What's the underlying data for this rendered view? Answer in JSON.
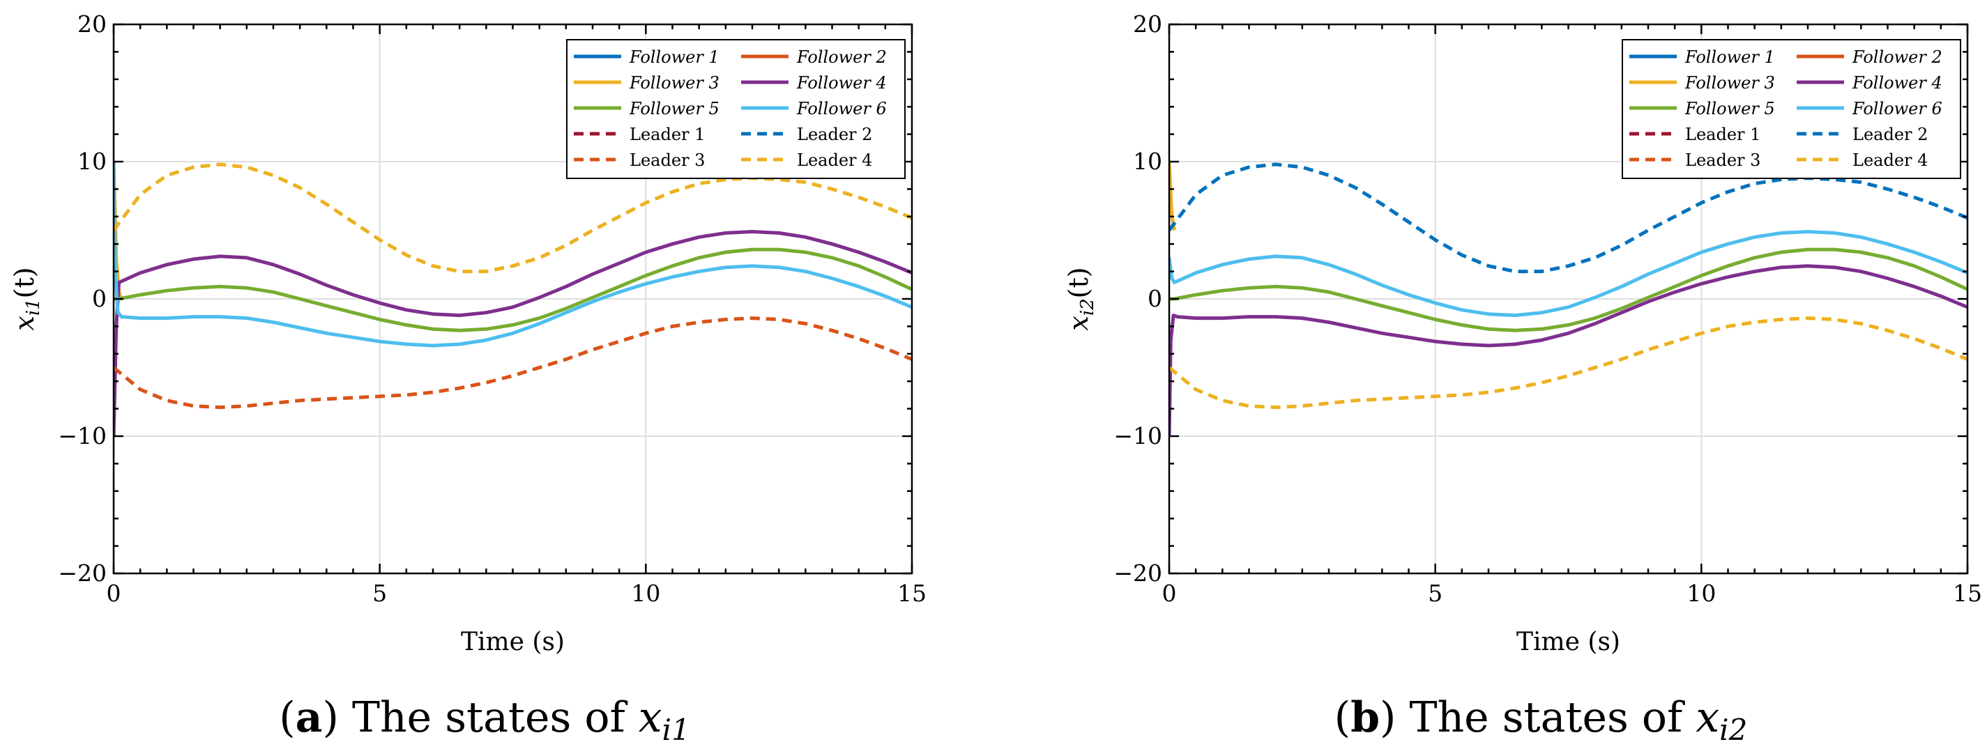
{
  "chart_data": [
    {
      "type": "line",
      "id": "a",
      "caption_letter": "a",
      "caption_text": "The states of",
      "caption_var": "x",
      "caption_sub": "i1",
      "xlabel": "Time (s)",
      "ylabel_main": "x",
      "ylabel_sub": "i1",
      "ylabel_arg": "(t)",
      "xlim": [
        0,
        15
      ],
      "ylim": [
        -20,
        20
      ],
      "xticks": [
        0,
        5,
        10,
        15
      ],
      "yticks": [
        -20,
        -10,
        0,
        10,
        20
      ],
      "ytick_labels": [
        "−20",
        "−10",
        "0",
        "10",
        "20"
      ],
      "xtick_labels": [
        "0",
        "5",
        "10",
        "15"
      ],
      "legend_position": "top-right",
      "series": [
        {
          "name": "Follower 1",
          "style": "solid",
          "color": "#0072bd",
          "x": [],
          "y": []
        },
        {
          "name": "Follower 2",
          "style": "solid",
          "color": "#d95319",
          "x": [],
          "y": []
        },
        {
          "name": "Follower 3",
          "style": "solid",
          "color": "#edb120",
          "x": [
            0,
            0.05,
            0.1,
            0.15
          ],
          "y": [
            10,
            3,
            0.5,
            0
          ]
        },
        {
          "name": "Follower 4",
          "style": "solid",
          "color": "#7e2f8e",
          "x": [
            0,
            0.05,
            0.1,
            0.5,
            1,
            1.5,
            2,
            2.5,
            3,
            3.5,
            4,
            4.5,
            5,
            5.5,
            6,
            6.5,
            7,
            7.5,
            8,
            8.5,
            9,
            9.5,
            10,
            10.5,
            11,
            11.5,
            12,
            12.5,
            13,
            13.5,
            14,
            14.5,
            15
          ],
          "y": [
            -10,
            -2,
            1.2,
            1.9,
            2.5,
            2.9,
            3.1,
            3.0,
            2.5,
            1.8,
            1.0,
            0.3,
            -0.3,
            -0.8,
            -1.1,
            -1.2,
            -1.0,
            -0.6,
            0.1,
            0.9,
            1.8,
            2.6,
            3.4,
            4.0,
            4.5,
            4.8,
            4.9,
            4.8,
            4.5,
            4.0,
            3.4,
            2.7,
            1.9
          ]
        },
        {
          "name": "Follower 5",
          "style": "solid",
          "color": "#77ac30",
          "x": [
            0,
            0.05,
            0.1,
            0.5,
            1,
            1.5,
            2,
            2.5,
            3,
            3.5,
            4,
            4.5,
            5,
            5.5,
            6,
            6.5,
            7,
            7.5,
            8,
            8.5,
            9,
            9.5,
            10,
            10.5,
            11,
            11.5,
            12,
            12.5,
            13,
            13.5,
            14,
            14.5,
            15
          ],
          "y": [
            0,
            0,
            0,
            0.3,
            0.6,
            0.8,
            0.9,
            0.8,
            0.5,
            0,
            -0.5,
            -1.0,
            -1.5,
            -1.9,
            -2.2,
            -2.3,
            -2.2,
            -1.9,
            -1.4,
            -0.7,
            0.1,
            0.9,
            1.7,
            2.4,
            3.0,
            3.4,
            3.6,
            3.6,
            3.4,
            3.0,
            2.4,
            1.6,
            0.7
          ]
        },
        {
          "name": "Follower 6",
          "style": "solid",
          "color": "#4dbeee",
          "x": [
            0,
            0.03,
            0.08,
            0.15,
            0.5,
            1,
            1.5,
            2,
            2.5,
            3,
            3.5,
            4,
            4.5,
            5,
            5.5,
            6,
            6.5,
            7,
            7.5,
            8,
            8.5,
            9,
            9.5,
            10,
            10.5,
            11,
            11.5,
            12,
            12.5,
            13,
            13.5,
            14,
            14.5,
            15
          ],
          "y": [
            10,
            2,
            -1,
            -1.3,
            -1.4,
            -1.4,
            -1.3,
            -1.3,
            -1.4,
            -1.7,
            -2.1,
            -2.5,
            -2.8,
            -3.1,
            -3.3,
            -3.4,
            -3.3,
            -3.0,
            -2.5,
            -1.8,
            -1.0,
            -0.2,
            0.5,
            1.1,
            1.6,
            2.0,
            2.3,
            2.4,
            2.3,
            2.0,
            1.5,
            0.9,
            0.2,
            -0.6
          ]
        },
        {
          "name": "Leader  1",
          "style": "dashed",
          "color": "#a2142f",
          "x": [],
          "y": []
        },
        {
          "name": "Leader  2",
          "style": "dashed",
          "color": "#0072bd",
          "x": [],
          "y": []
        },
        {
          "name": "Leader  3",
          "style": "dashed",
          "color": "#d95319",
          "x": [
            0,
            0.5,
            1,
            1.5,
            2,
            2.5,
            3,
            3.5,
            4,
            4.5,
            5,
            5.5,
            6,
            6.5,
            7,
            7.5,
            8,
            8.5,
            9,
            9.5,
            10,
            10.5,
            11,
            11.5,
            12,
            12.5,
            13,
            13.5,
            14,
            14.5,
            15
          ],
          "y": [
            -5,
            -6.6,
            -7.4,
            -7.8,
            -7.9,
            -7.8,
            -7.6,
            -7.4,
            -7.3,
            -7.2,
            -7.1,
            -7.0,
            -6.8,
            -6.5,
            -6.1,
            -5.6,
            -5.0,
            -4.4,
            -3.7,
            -3.1,
            -2.5,
            -2.0,
            -1.7,
            -1.5,
            -1.4,
            -1.5,
            -1.8,
            -2.3,
            -2.9,
            -3.6,
            -4.4
          ]
        },
        {
          "name": "Leader  4",
          "style": "dashed",
          "color": "#edb120",
          "x": [
            0,
            0.5,
            1,
            1.5,
            2,
            2.5,
            3,
            3.5,
            4,
            4.5,
            5,
            5.5,
            6,
            6.5,
            7,
            7.5,
            8,
            8.5,
            9,
            9.5,
            10,
            10.5,
            11,
            11.5,
            12,
            12.5,
            13,
            13.5,
            14,
            14.5,
            15
          ],
          "y": [
            5,
            7.6,
            9.0,
            9.6,
            9.8,
            9.6,
            9.0,
            8.1,
            6.9,
            5.6,
            4.3,
            3.2,
            2.4,
            2.0,
            2.0,
            2.4,
            3.0,
            3.9,
            5.0,
            6.0,
            7.0,
            7.8,
            8.4,
            8.7,
            8.8,
            8.7,
            8.5,
            8.0,
            7.4,
            6.7,
            5.9
          ]
        }
      ]
    },
    {
      "type": "line",
      "id": "b",
      "caption_letter": "b",
      "caption_text": "The states of",
      "caption_var": "x",
      "caption_sub": "i2",
      "xlabel": "Time (s)",
      "ylabel_main": "x",
      "ylabel_sub": "i2",
      "ylabel_arg": "(t)",
      "xlim": [
        0,
        15
      ],
      "ylim": [
        -20,
        20
      ],
      "xticks": [
        0,
        5,
        10,
        15
      ],
      "yticks": [
        -20,
        -10,
        0,
        10,
        20
      ],
      "ytick_labels": [
        "−20",
        "−10",
        "0",
        "10",
        "20"
      ],
      "xtick_labels": [
        "0",
        "5",
        "10",
        "15"
      ],
      "legend_position": "top-right",
      "series": [
        {
          "name": "Follower 1",
          "style": "solid",
          "color": "#0072bd",
          "x": [],
          "y": []
        },
        {
          "name": "Follower 2",
          "style": "solid",
          "color": "#d95319",
          "x": [],
          "y": []
        },
        {
          "name": "Follower 3",
          "style": "solid",
          "color": "#edb120",
          "x": [
            0,
            0.05,
            0.1
          ],
          "y": [
            10,
            6,
            5
          ]
        },
        {
          "name": "Follower 4",
          "style": "solid",
          "color": "#7e2f8e",
          "x": [
            0,
            0.03,
            0.08,
            0.15,
            0.5,
            1,
            1.5,
            2,
            2.5,
            3,
            3.5,
            4,
            4.5,
            5,
            5.5,
            6,
            6.5,
            7,
            7.5,
            8,
            8.5,
            9,
            9.5,
            10,
            10.5,
            11,
            11.5,
            12,
            12.5,
            13,
            13.5,
            14,
            14.5,
            15
          ],
          "y": [
            -10,
            -3,
            -1.2,
            -1.3,
            -1.4,
            -1.4,
            -1.3,
            -1.3,
            -1.4,
            -1.7,
            -2.1,
            -2.5,
            -2.8,
            -3.1,
            -3.3,
            -3.4,
            -3.3,
            -3.0,
            -2.5,
            -1.8,
            -1.0,
            -0.2,
            0.5,
            1.1,
            1.6,
            2.0,
            2.3,
            2.4,
            2.3,
            2.0,
            1.5,
            0.9,
            0.2,
            -0.6
          ]
        },
        {
          "name": "Follower 5",
          "style": "solid",
          "color": "#77ac30",
          "x": [
            0,
            0.05,
            0.1,
            0.5,
            1,
            1.5,
            2,
            2.5,
            3,
            3.5,
            4,
            4.5,
            5,
            5.5,
            6,
            6.5,
            7,
            7.5,
            8,
            8.5,
            9,
            9.5,
            10,
            10.5,
            11,
            11.5,
            12,
            12.5,
            13,
            13.5,
            14,
            14.5,
            15
          ],
          "y": [
            0,
            0,
            0,
            0.3,
            0.6,
            0.8,
            0.9,
            0.8,
            0.5,
            0,
            -0.5,
            -1.0,
            -1.5,
            -1.9,
            -2.2,
            -2.3,
            -2.2,
            -1.9,
            -1.4,
            -0.7,
            0.1,
            0.9,
            1.7,
            2.4,
            3.0,
            3.4,
            3.6,
            3.6,
            3.4,
            3.0,
            2.4,
            1.6,
            0.7
          ]
        },
        {
          "name": "Follower 6",
          "style": "solid",
          "color": "#4dbeee",
          "x": [
            0,
            0.05,
            0.1,
            0.5,
            1,
            1.5,
            2,
            2.5,
            3,
            3.5,
            4,
            4.5,
            5,
            5.5,
            6,
            6.5,
            7,
            7.5,
            8,
            8.5,
            9,
            9.5,
            10,
            10.5,
            11,
            11.5,
            12,
            12.5,
            13,
            13.5,
            14,
            14.5,
            15
          ],
          "y": [
            3,
            1.5,
            1.2,
            1.9,
            2.5,
            2.9,
            3.1,
            3.0,
            2.5,
            1.8,
            1.0,
            0.3,
            -0.3,
            -0.8,
            -1.1,
            -1.2,
            -1.0,
            -0.6,
            0.1,
            0.9,
            1.8,
            2.6,
            3.4,
            4.0,
            4.5,
            4.8,
            4.9,
            4.8,
            4.5,
            4.0,
            3.4,
            2.7,
            1.9
          ]
        },
        {
          "name": "Leader  1",
          "style": "dashed",
          "color": "#a2142f",
          "x": [],
          "y": []
        },
        {
          "name": "Leader  2",
          "style": "dashed",
          "color": "#0072bd",
          "x": [
            0,
            0.5,
            1,
            1.5,
            2,
            2.5,
            3,
            3.5,
            4,
            4.5,
            5,
            5.5,
            6,
            6.5,
            7,
            7.5,
            8,
            8.5,
            9,
            9.5,
            10,
            10.5,
            11,
            11.5,
            12,
            12.5,
            13,
            13.5,
            14,
            14.5,
            15
          ],
          "y": [
            5,
            7.6,
            9.0,
            9.6,
            9.8,
            9.6,
            9.0,
            8.1,
            6.9,
            5.6,
            4.3,
            3.2,
            2.4,
            2.0,
            2.0,
            2.4,
            3.0,
            3.9,
            5.0,
            6.0,
            7.0,
            7.8,
            8.4,
            8.7,
            8.8,
            8.7,
            8.5,
            8.0,
            7.4,
            6.7,
            5.9
          ]
        },
        {
          "name": "Leader  3",
          "style": "dashed",
          "color": "#d95319",
          "x": [],
          "y": []
        },
        {
          "name": "Leader  4",
          "style": "dashed",
          "color": "#edb120",
          "x": [
            0,
            0.5,
            1,
            1.5,
            2,
            2.5,
            3,
            3.5,
            4,
            4.5,
            5,
            5.5,
            6,
            6.5,
            7,
            7.5,
            8,
            8.5,
            9,
            9.5,
            10,
            10.5,
            11,
            11.5,
            12,
            12.5,
            13,
            13.5,
            14,
            14.5,
            15
          ],
          "y": [
            -5,
            -6.6,
            -7.4,
            -7.8,
            -7.9,
            -7.8,
            -7.6,
            -7.4,
            -7.3,
            -7.2,
            -7.1,
            -7.0,
            -6.8,
            -6.5,
            -6.1,
            -5.6,
            -5.0,
            -4.4,
            -3.7,
            -3.1,
            -2.5,
            -2.0,
            -1.7,
            -1.5,
            -1.4,
            -1.5,
            -1.8,
            -2.3,
            -2.9,
            -3.6,
            -4.4
          ]
        }
      ]
    }
  ]
}
